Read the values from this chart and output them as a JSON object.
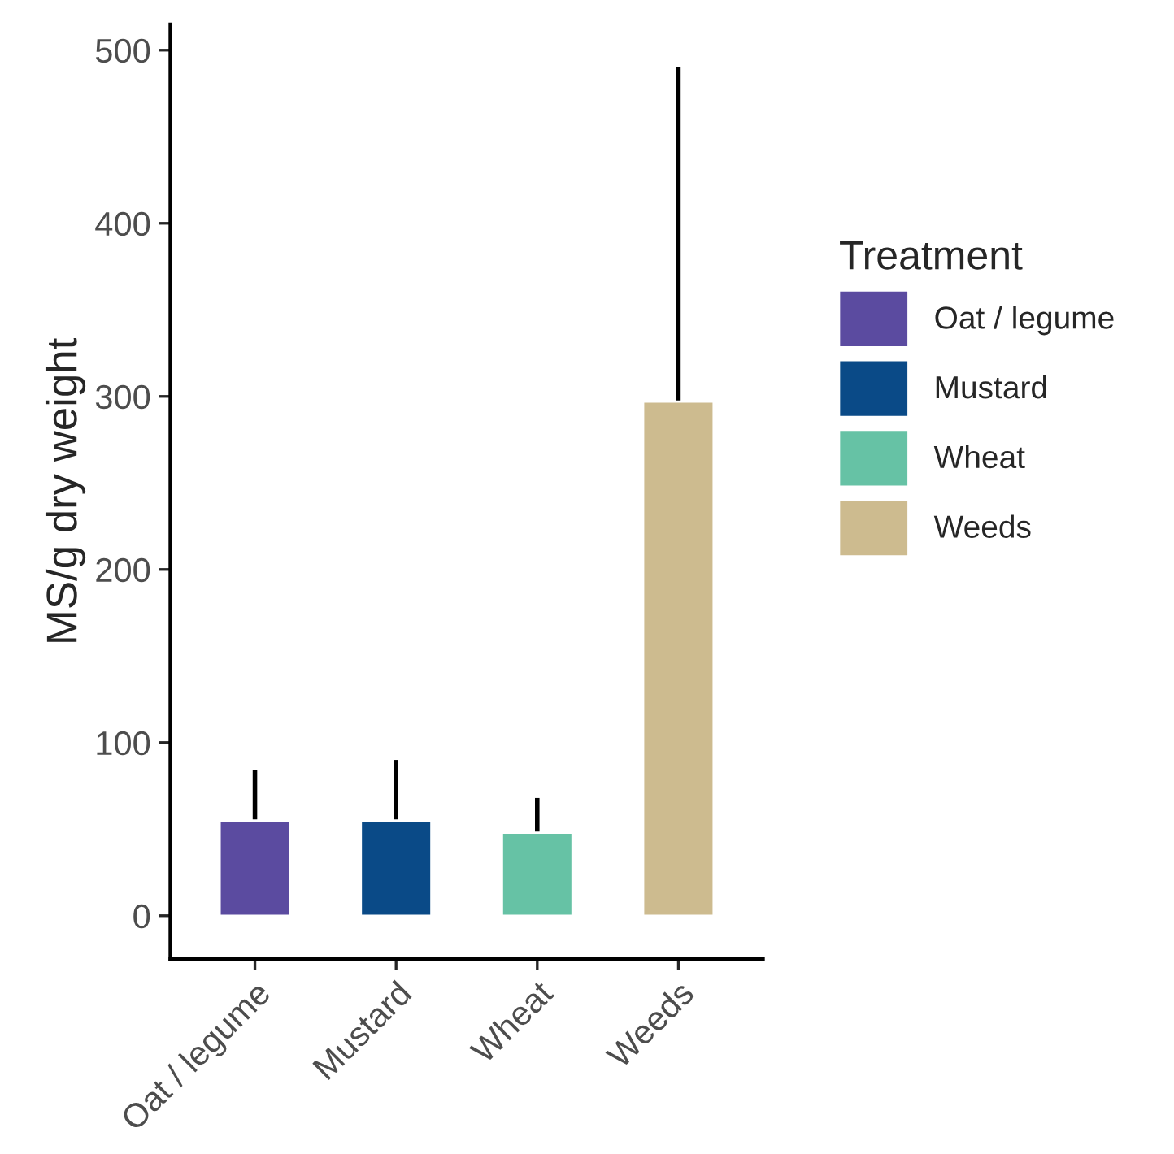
{
  "chart_data": {
    "type": "bar",
    "ylabel": "MS/g dry weight",
    "legend_title": "Treatment",
    "categories": [
      "Oat / legume",
      "Mustard",
      "Wheat",
      "Weeds"
    ],
    "series": [
      {
        "name": "Oat / legume",
        "color": "#5b4ba0",
        "values": [
          55,
          null,
          null,
          null
        ],
        "errors": [
          [
            55,
            84
          ],
          null,
          null,
          null
        ]
      },
      {
        "name": "Mustard",
        "color": "#0a4a87",
        "values": [
          null,
          55,
          null,
          null
        ],
        "errors": [
          null,
          [
            55,
            90
          ],
          null,
          null
        ]
      },
      {
        "name": "Wheat",
        "color": "#66c2a5",
        "values": [
          null,
          null,
          48,
          null
        ],
        "errors": [
          null,
          null,
          [
            48,
            68
          ],
          null
        ]
      },
      {
        "name": "Weeds",
        "color": "#cdbb8f",
        "values": [
          null,
          null,
          null,
          297
        ],
        "errors": [
          null,
          null,
          null,
          [
            297,
            490
          ]
        ]
      }
    ],
    "ylim": [
      -25,
      515
    ],
    "yticks": [
      0,
      100,
      200,
      300,
      400,
      500
    ],
    "legend": "right"
  }
}
